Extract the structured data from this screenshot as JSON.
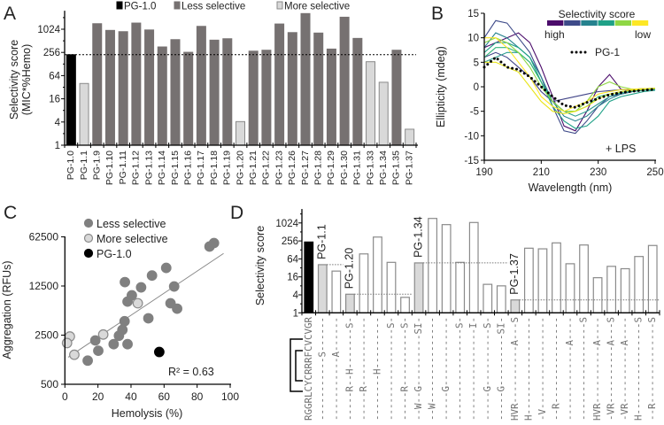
{
  "panels": {
    "a": "A",
    "b": "B",
    "c": "C",
    "d": "D"
  },
  "chart_data": [
    {
      "id": "A",
      "type": "bar",
      "yscale": "log2",
      "ylabel": [
        "Selectivity score",
        "(MIC*%Hemo)"
      ],
      "ylim": [
        1,
        3100
      ],
      "yticks": [
        1,
        4,
        16,
        64,
        256,
        1024
      ],
      "ytick_labels": [
        "1",
        "4",
        "16",
        "64",
        "256",
        "1024"
      ],
      "threshold": 223,
      "legend": [
        {
          "label": "PG-1.0",
          "group": "parent"
        },
        {
          "label": "Less selective",
          "group": "less"
        },
        {
          "label": "More selective",
          "group": "more"
        }
      ],
      "colors": {
        "parent": "#000000",
        "less": "#767171",
        "more": "#d9d9d9",
        "more_edge": "#8a8a8a"
      },
      "categories": [
        "PG-1.0",
        "PG-1.1",
        "PG-1.9",
        "PG-1.10",
        "PG-1.11",
        "PG-1.12",
        "PG-1.13",
        "PG-1.14",
        "PG-1.15",
        "PG-1.16",
        "PG-1.17",
        "PG-1.18",
        "PG-1.19",
        "PG-1.20",
        "PG-1.21",
        "PG-1.22",
        "PG-1.23",
        "PG-1.26",
        "PG-1.27",
        "PG-1.28",
        "PG-1.29",
        "PG-1.30",
        "PG-1.31",
        "PG-1.33",
        "PG-1.34",
        "PG-1.35",
        "PG-1.37"
      ],
      "values": [
        223,
        40,
        1425,
        955,
        885,
        1480,
        980,
        355,
        550,
        258,
        1215,
        533,
        580,
        4.1,
        276,
        292,
        1400,
        838,
        2610,
        815,
        313,
        2100,
        592,
        147,
        43,
        292,
        2.6
      ],
      "groups": [
        "parent",
        "more",
        "less",
        "less",
        "less",
        "less",
        "less",
        "less",
        "less",
        "less",
        "less",
        "less",
        "less",
        "more",
        "less",
        "less",
        "less",
        "less",
        "less",
        "less",
        "less",
        "less",
        "less",
        "more",
        "more",
        "less",
        "more"
      ]
    },
    {
      "id": "B",
      "type": "line",
      "xlabel": "Wavelength (nm)",
      "ylabel": "Ellipticity (mdeg)",
      "xlim": [
        190,
        250
      ],
      "ylim": [
        -15,
        15
      ],
      "xticks": [
        190,
        210,
        230,
        250
      ],
      "xtick_labels": [
        "190",
        "210",
        "230",
        "250"
      ],
      "yticks": [
        -15,
        -10,
        -5,
        0,
        5,
        10,
        15
      ],
      "ytick_labels": [
        "-15",
        "-10",
        "-5",
        "0",
        "5",
        "10",
        "15"
      ],
      "annotation": "+ LPS",
      "colorbar": {
        "title": "Selectivity score",
        "high_label": "high",
        "low_label": "low",
        "colors": [
          "#4b0c6b",
          "#3e4a89",
          "#26828e",
          "#1fa187",
          "#8fd744",
          "#fde725"
        ]
      },
      "x": [
        190,
        194,
        198,
        202,
        206,
        210,
        214,
        218,
        222,
        226,
        230,
        234,
        238,
        242,
        246,
        250
      ],
      "series": [
        {
          "color": "#4b0c6b",
          "y": [
            8,
            9,
            10,
            11,
            9,
            4,
            -2,
            -8,
            -9,
            -5,
            0,
            2.5,
            -0.5,
            -0.8,
            -0.5,
            -0.3
          ]
        },
        {
          "color": "#3e4a89",
          "y": [
            10,
            13.5,
            13,
            10,
            7,
            2,
            -4,
            -9,
            -9.5,
            -7,
            -4,
            -2,
            -1.5,
            -1,
            -0.6,
            -0.4
          ]
        },
        {
          "color": "#414487",
          "y": [
            6,
            7,
            6,
            4,
            2,
            -1,
            -3,
            -2.5,
            -2,
            -1.5,
            -1,
            -0.8,
            -0.6,
            -0.5,
            -0.4,
            -0.3
          ]
        },
        {
          "color": "#26828e",
          "y": [
            8,
            11,
            10,
            8,
            6,
            2,
            -3,
            -6,
            -7,
            -6,
            -4,
            -2.5,
            -1.5,
            -1,
            -0.7,
            -0.5
          ]
        },
        {
          "color": "#2a9d8f",
          "y": [
            5,
            6,
            7,
            7,
            5,
            1,
            -3,
            -5,
            -6,
            -5,
            -3.5,
            -2,
            -1.2,
            -0.9,
            -0.6,
            -0.4
          ]
        },
        {
          "color": "#1fa187",
          "y": [
            7,
            9,
            9,
            8,
            6,
            1,
            -4,
            -7,
            -8.5,
            -8,
            -6,
            -3,
            -2,
            -1.5,
            -1,
            -0.7
          ]
        },
        {
          "color": "#35b779",
          "y": [
            6,
            8,
            8,
            7,
            5,
            1,
            -3,
            -5,
            -5,
            -4,
            -2,
            -1.5,
            -1,
            -0.7,
            -0.5,
            -0.4
          ]
        },
        {
          "color": "#8fd744",
          "y": [
            9,
            10,
            9,
            7,
            4,
            0,
            -3,
            -5,
            -5,
            -3,
            0,
            1,
            0,
            -0.5,
            -0.4,
            -0.3
          ]
        },
        {
          "color": "#fde725",
          "y": [
            10,
            10,
            8,
            5,
            2,
            -2,
            -4,
            -5,
            -4,
            -3,
            -1.5,
            -1,
            -0.6,
            -0.5,
            -0.4,
            -0.3
          ]
        },
        {
          "color": "#e8e419",
          "y": [
            5,
            5,
            4,
            3,
            0,
            -3,
            -5,
            -5.5,
            -5,
            -4,
            -2.5,
            -1.5,
            -1,
            -0.7,
            -0.5,
            -0.3
          ]
        }
      ],
      "reference": {
        "name": "PG-1",
        "y": [
          4,
          6,
          4,
          3.5,
          2,
          0,
          -2,
          -3.8,
          -4.2,
          -3.2,
          -2.4,
          -1.6,
          -1.2,
          -0.9,
          -0.7,
          -0.5
        ]
      }
    },
    {
      "id": "C",
      "type": "scatter",
      "xlabel": "Hemolysis (%)",
      "ylabel": "Aggregation (RFUs)",
      "xlim": [
        0,
        100
      ],
      "ylim": [
        500,
        62500
      ],
      "yscale": "log5",
      "xticks": [
        0,
        20,
        40,
        60,
        80,
        100
      ],
      "xtick_labels": [
        "0",
        "20",
        "40",
        "60",
        "80",
        "100"
      ],
      "yticks": [
        500,
        2500,
        12500,
        62500
      ],
      "ytick_labels": [
        "500",
        "2500",
        "12500",
        "62500"
      ],
      "annotation": "R² = 0.63",
      "legend": [
        "Less selective",
        "More selective",
        "PG-1.0"
      ],
      "colors": {
        "less": "#808080",
        "more": "#d9d9d9",
        "parent": "#000000"
      },
      "trendline": {
        "x": [
          2,
          96
        ],
        "y": [
          1213,
          36300
        ]
      },
      "series": [
        {
          "name": "Less selective",
          "points": [
            [
              90.2,
              51000
            ],
            [
              87.5,
              45500
            ],
            [
              61.3,
              22600
            ],
            [
              52.7,
              17600
            ],
            [
              36.3,
              14200
            ],
            [
              46.1,
              11950
            ],
            [
              66.1,
              12300
            ],
            [
              40.5,
              9200
            ],
            [
              37.9,
              7500
            ],
            [
              63.9,
              7100
            ],
            [
              67.9,
              5950
            ],
            [
              50.5,
              4340
            ],
            [
              36.1,
              3940
            ],
            [
              34.8,
              2970
            ],
            [
              32.7,
              2450
            ],
            [
              18.4,
              2100
            ],
            [
              29.5,
              1860
            ],
            [
              37.9,
              1860
            ],
            [
              20.2,
              1500
            ],
            [
              13.8,
              1085
            ]
          ]
        },
        {
          "name": "More selective",
          "points": [
            [
              44.1,
              7100
            ],
            [
              23.2,
              2550
            ],
            [
              3.0,
              2390
            ],
            [
              1.3,
              1930
            ],
            [
              5.7,
              1315
            ]
          ]
        },
        {
          "name": "PG-1.0",
          "points": [
            [
              57.1,
              1440
            ]
          ]
        }
      ]
    },
    {
      "id": "D",
      "type": "bar",
      "yscale": "log2",
      "ylabel": "Selectivity score",
      "ylim": [
        1,
        3000
      ],
      "yticks": [
        1,
        4,
        16,
        64,
        256,
        1024
      ],
      "ytick_labels": [
        "1",
        "4",
        "16",
        "64",
        "256",
        "1024"
      ],
      "values": [
        235,
        41,
        25,
        4.2,
        94,
        345,
        49,
        3.3,
        47,
        1450,
        900,
        49,
        1060,
        9,
        8,
        2.7,
        146,
        139,
        220,
        44,
        187,
        15,
        36,
        30,
        77,
        180
      ],
      "groups": [
        "parent",
        "more",
        "variant",
        "more",
        "variant",
        "variant",
        "variant",
        "variant",
        "more",
        "variant",
        "variant",
        "variant",
        "variant",
        "variant",
        "variant",
        "more",
        "variant",
        "variant",
        "variant",
        "variant",
        "variant",
        "variant",
        "variant",
        "variant",
        "variant",
        "variant"
      ],
      "highlights": [
        {
          "index": 1,
          "label": "PG-1.1",
          "line_to_index": 2
        },
        {
          "index": 3,
          "label": "PG-1.20",
          "line_to_index": 7
        },
        {
          "index": 8,
          "label": "PG-1.34",
          "line_to_index": 14
        },
        {
          "index": 15,
          "label": "PG-1.37",
          "line_to_index": 25
        }
      ],
      "sequences": [
        "RGGRLCYCRRRFCVCVGR",
        "-----------S------",
        "-----------A------",
        "-----R--H-------S-",
        "-----R------------",
        "--------H---------",
        "----------------S-",
        "-----R----------S-",
        "--W--G---------SI-",
        "--W---------------",
        "-----G------------",
        "----------------S-",
        "----------------I-",
        "-----G----------S-",
        "-----G---------SI-",
        "HVR----------A---S",
        "H-----------------",
        "-V----------------",
        "--R---------------",
        "-------------A----",
        "-----------------S",
        "HVR----------A----",
        "-VR----------A---S",
        "-VR----------A----",
        "H----------------S",
        "--R--------------S"
      ],
      "colors": {
        "parent": "#000000",
        "more": "#d9d9d9",
        "variant": "#ffffff",
        "edge": "#8a8a8a"
      }
    }
  ]
}
